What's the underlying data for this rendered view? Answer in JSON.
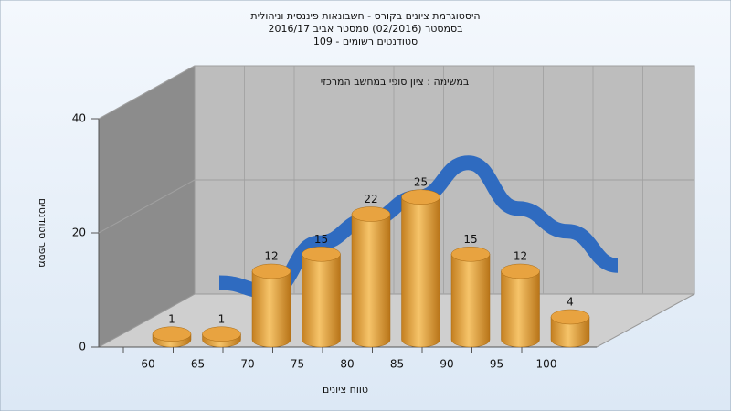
{
  "chart_data": {
    "type": "bar",
    "title": "היסטוגרמת ציונים בקורס - חשבונאות פיננסית וניהולית",
    "subtitle": "בסמסטר   (02/2016)  סמסטר אביב 2016/17",
    "subtitle2": "סטודנטים רשומים - 109",
    "annotation": "במשימה : ציון סופי במחשב המרכזי",
    "x_label": "טווח ציונים",
    "y_label": "מספר סטודנטים",
    "categories": [
      60,
      65,
      70,
      75,
      80,
      85,
      90,
      95,
      100
    ],
    "values": [
      1,
      1,
      12,
      15,
      22,
      25,
      15,
      12,
      4
    ],
    "color": "#e8a340",
    "curve": {
      "color": "#2f6bc0",
      "values": [
        2,
        0.5,
        9,
        13,
        17,
        23,
        15,
        11,
        5
      ]
    },
    "ylim": [
      0,
      40
    ],
    "yticks": [
      0,
      20,
      40
    ],
    "grid": true
  }
}
